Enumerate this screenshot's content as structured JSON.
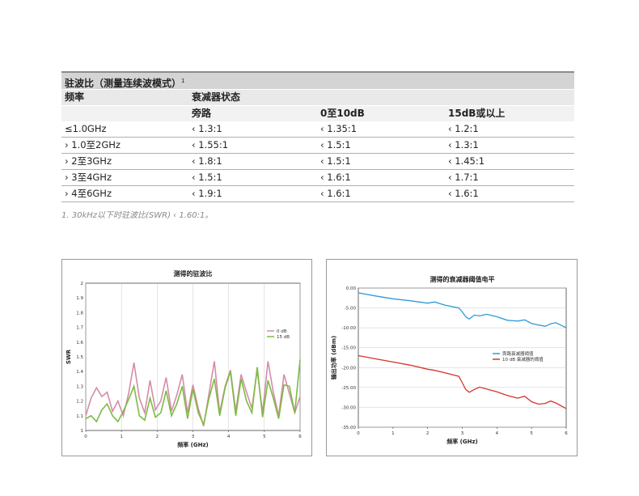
{
  "table": {
    "title": "驻波比（测量连续波模式）",
    "title_note_mark": "1",
    "header": {
      "freq": "频率",
      "state": "衰减器状态"
    },
    "subheader": {
      "bypass": "旁路",
      "range1": "0至10dB",
      "range2": "15dB或以上"
    },
    "rows": [
      {
        "freq": "≤1.0GHz",
        "bypass": "‹ 1.3:1",
        "range1": "‹ 1.35:1",
        "range2": "‹ 1.2:1"
      },
      {
        "freq": "› 1.0至2GHz",
        "bypass": "‹ 1.55:1",
        "range1": "‹ 1.5:1",
        "range2": "‹ 1.3:1"
      },
      {
        "freq": "› 2至3GHz",
        "bypass": "‹ 1.8:1",
        "range1": "‹ 1.5:1",
        "range2": "‹ 1.45:1"
      },
      {
        "freq": "› 3至4GHz",
        "bypass": "‹ 1.5:1",
        "range1": "‹ 1.6:1",
        "range2": "‹ 1.7:1"
      },
      {
        "freq": "› 4至6GHz",
        "bypass": "‹ 1.9:1",
        "range1": "‹ 1.6:1",
        "range2": "‹ 1.6:1"
      }
    ],
    "footnote": "1. 30kHz以下时驻波比(SWR) ‹ 1.60:1。"
  },
  "chart_data": [
    {
      "type": "line",
      "title": "测得的驻波比",
      "xlabel": "频率 (GHz)",
      "ylabel": "SWR",
      "xlim": [
        0,
        6
      ],
      "ylim": [
        1,
        2
      ],
      "xticks": [
        "0",
        "1",
        "2",
        "3",
        "4",
        "5",
        "6"
      ],
      "yticks": [
        "1",
        "1.1",
        "1.2",
        "1.3",
        "1.4",
        "1.5",
        "1.6",
        "1.7",
        "1.8",
        "1.9",
        "2"
      ],
      "legend": "right",
      "series": [
        {
          "name": "0 dB",
          "color": "#d58ca8",
          "x": [
            0,
            0.15,
            0.3,
            0.45,
            0.6,
            0.75,
            0.9,
            1.05,
            1.2,
            1.35,
            1.5,
            1.65,
            1.8,
            1.95,
            2.1,
            2.25,
            2.4,
            2.55,
            2.7,
            2.85,
            3.0,
            3.15,
            3.3,
            3.45,
            3.6,
            3.75,
            3.9,
            4.05,
            4.2,
            4.35,
            4.5,
            4.65,
            4.8,
            4.95,
            5.1,
            5.25,
            5.4,
            5.55,
            5.7,
            5.85,
            6.0
          ],
          "y": [
            1.1,
            1.22,
            1.29,
            1.23,
            1.26,
            1.13,
            1.2,
            1.1,
            1.25,
            1.46,
            1.22,
            1.12,
            1.34,
            1.14,
            1.2,
            1.36,
            1.13,
            1.24,
            1.38,
            1.12,
            1.31,
            1.15,
            1.03,
            1.25,
            1.47,
            1.12,
            1.3,
            1.41,
            1.13,
            1.38,
            1.26,
            1.15,
            1.41,
            1.12,
            1.47,
            1.26,
            1.1,
            1.38,
            1.25,
            1.12,
            1.23
          ]
        },
        {
          "name": "15 dB",
          "color": "#7cbc42",
          "x": [
            0,
            0.15,
            0.3,
            0.45,
            0.6,
            0.75,
            0.9,
            1.05,
            1.2,
            1.35,
            1.5,
            1.65,
            1.8,
            1.95,
            2.1,
            2.25,
            2.4,
            2.55,
            2.7,
            2.85,
            3.0,
            3.15,
            3.3,
            3.45,
            3.6,
            3.75,
            3.9,
            4.05,
            4.2,
            4.35,
            4.5,
            4.65,
            4.8,
            4.95,
            5.1,
            5.25,
            5.4,
            5.55,
            5.7,
            5.85,
            6.0
          ],
          "y": [
            1.08,
            1.1,
            1.06,
            1.14,
            1.18,
            1.1,
            1.06,
            1.13,
            1.21,
            1.3,
            1.1,
            1.07,
            1.22,
            1.09,
            1.12,
            1.27,
            1.1,
            1.18,
            1.3,
            1.08,
            1.28,
            1.12,
            1.04,
            1.22,
            1.35,
            1.1,
            1.29,
            1.4,
            1.1,
            1.35,
            1.2,
            1.12,
            1.43,
            1.09,
            1.34,
            1.22,
            1.08,
            1.31,
            1.3,
            1.12,
            1.48
          ]
        }
      ]
    },
    {
      "type": "line",
      "title": "测得的衰减器阈值电平",
      "xlabel": "频率 (GHz)",
      "ylabel": "输出功率 (dBm)",
      "xlim": [
        0,
        6
      ],
      "ylim": [
        -35,
        0
      ],
      "xticks": [
        "0",
        "1",
        "2",
        "3",
        "4",
        "5",
        "6"
      ],
      "yticks": [
        "0.00",
        "-5.00",
        "-10.00",
        "-15.00",
        "-20.00",
        "-25.00",
        "-30.00",
        "-35.00"
      ],
      "legend": "right",
      "series": [
        {
          "name": "旁路衰减器阈值",
          "color": "#2e9bd6",
          "x": [
            0,
            0.5,
            1.0,
            1.5,
            2.0,
            2.2,
            2.5,
            2.9,
            3.0,
            3.1,
            3.2,
            3.35,
            3.5,
            3.7,
            4.0,
            4.3,
            4.6,
            4.8,
            5.0,
            5.2,
            5.4,
            5.55,
            5.7,
            6.0
          ],
          "y": [
            -1.2,
            -2.0,
            -2.7,
            -3.2,
            -3.8,
            -3.5,
            -4.3,
            -5.0,
            -6.0,
            -7.2,
            -7.8,
            -6.8,
            -7.0,
            -6.6,
            -7.2,
            -8.1,
            -8.3,
            -8.0,
            -8.9,
            -9.3,
            -9.6,
            -9.0,
            -8.7,
            -10.0
          ]
        },
        {
          "name": "10 dB 衰减器的阈值",
          "color": "#d2372b",
          "x": [
            0,
            0.5,
            1.0,
            1.5,
            2.0,
            2.2,
            2.5,
            2.9,
            3.0,
            3.1,
            3.2,
            3.35,
            3.5,
            3.7,
            4.0,
            4.3,
            4.6,
            4.8,
            5.0,
            5.2,
            5.4,
            5.55,
            5.7,
            6.0
          ],
          "y": [
            -17.0,
            -17.8,
            -18.6,
            -19.4,
            -20.4,
            -20.7,
            -21.3,
            -22.2,
            -23.8,
            -25.5,
            -26.2,
            -25.5,
            -24.9,
            -25.4,
            -26.1,
            -27.0,
            -27.7,
            -27.2,
            -28.6,
            -29.2,
            -29.0,
            -28.4,
            -28.9,
            -30.3
          ]
        }
      ]
    }
  ]
}
